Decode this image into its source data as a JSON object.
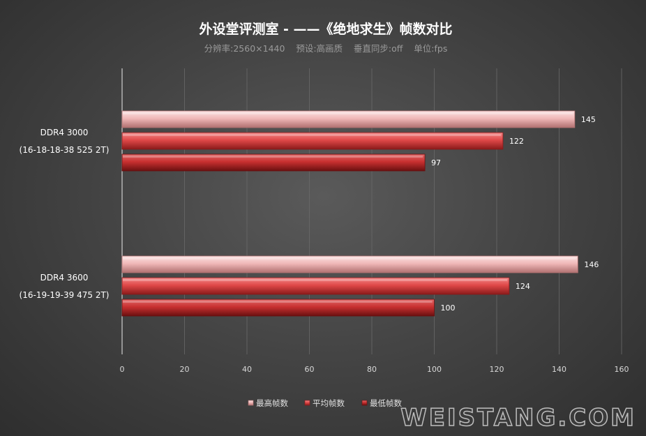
{
  "watermark": "WEISTANG.COM",
  "chart_data": {
    "type": "bar",
    "orientation": "horizontal",
    "title": "外设堂评测室  -  ——《绝地求生》帧数对比",
    "subtitle": "分辨率:2560×1440    预设:高画质    垂直同步:off    单位:fps",
    "categories": [
      {
        "line1": "DDR4 3000",
        "line2": "(16-18-18-38 525 2T)"
      },
      {
        "line1": "DDR4 3600",
        "line2": "(16-19-19-39 475 2T)"
      }
    ],
    "series": [
      {
        "name": "最高帧数",
        "values": [
          145,
          146
        ],
        "color": "#f0b8b8",
        "dark": "#b07070"
      },
      {
        "name": "平均帧数",
        "values": [
          122,
          124
        ],
        "color": "#e04848",
        "dark": "#8a1a1a"
      },
      {
        "name": "最低帧数",
        "values": [
          97,
          100
        ],
        "color": "#c83030",
        "dark": "#6a1010"
      }
    ],
    "xlim": [
      0,
      160
    ],
    "xticks": [
      0,
      20,
      40,
      60,
      80,
      100,
      120,
      140,
      160
    ],
    "grid": true,
    "legend_position": "bottom"
  }
}
